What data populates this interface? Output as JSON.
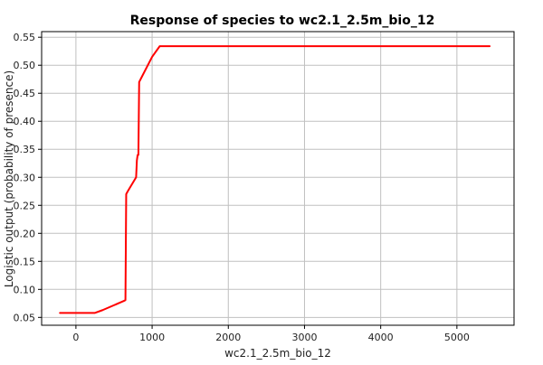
{
  "chart_data": {
    "type": "line",
    "title": "Response of species to wc2.1_2.5m_bio_12",
    "xlabel": "wc2.1_2.5m_bio_12",
    "ylabel": "Logistic output (probability of presence)",
    "xlim": [
      -450,
      5750
    ],
    "ylim": [
      0.036,
      0.56
    ],
    "x_ticks": [
      0,
      1000,
      2000,
      3000,
      4000,
      5000
    ],
    "y_ticks": [
      0.05,
      0.1,
      0.15,
      0.2,
      0.25,
      0.3,
      0.35,
      0.4,
      0.45,
      0.5,
      0.55
    ],
    "y_tick_labels": [
      "0.05",
      "0.10",
      "0.15",
      "0.20",
      "0.25",
      "0.30",
      "0.35",
      "0.40",
      "0.45",
      "0.50",
      "0.55"
    ],
    "grid": true,
    "series": [
      {
        "color": "#ff0000",
        "points": [
          [
            -210,
            0.058
          ],
          [
            250,
            0.058
          ],
          [
            350,
            0.063
          ],
          [
            640,
            0.08
          ],
          [
            650,
            0.081
          ],
          [
            660,
            0.27
          ],
          [
            680,
            0.275
          ],
          [
            790,
            0.3
          ],
          [
            800,
            0.33
          ],
          [
            810,
            0.34
          ],
          [
            820,
            0.34
          ],
          [
            830,
            0.47
          ],
          [
            860,
            0.478
          ],
          [
            1000,
            0.515
          ],
          [
            1100,
            0.534
          ],
          [
            5430,
            0.534
          ]
        ]
      }
    ]
  }
}
